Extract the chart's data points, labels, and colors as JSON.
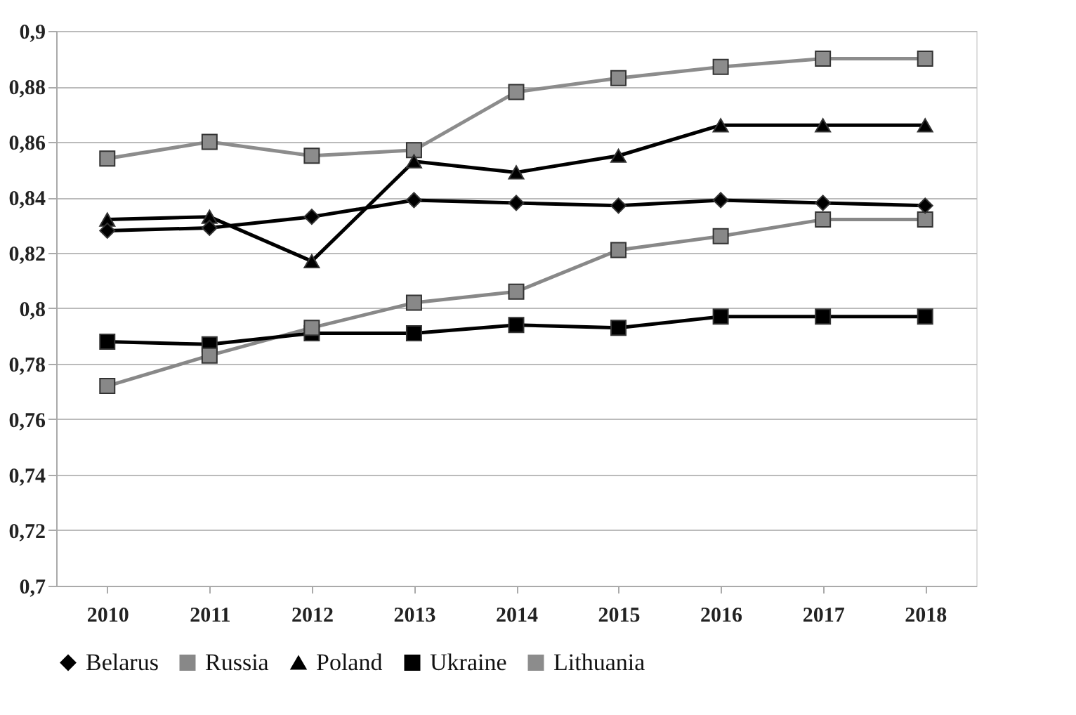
{
  "chart_data": {
    "type": "line",
    "categories": [
      "2010",
      "2011",
      "2012",
      "2013",
      "2014",
      "2015",
      "2016",
      "2017",
      "2018"
    ],
    "series": [
      {
        "name": "Belarus",
        "color": "#000000",
        "marker": "diamond",
        "values": [
          0.828,
          0.829,
          0.833,
          0.839,
          0.838,
          0.837,
          0.839,
          0.838,
          0.837
        ]
      },
      {
        "name": "Russia",
        "color": "#888888",
        "marker": "square",
        "values": [
          0.772,
          0.783,
          0.793,
          0.802,
          0.806,
          0.821,
          0.826,
          0.832,
          0.832
        ]
      },
      {
        "name": "Poland",
        "color": "#000000",
        "marker": "triangle",
        "values": [
          0.832,
          0.833,
          0.817,
          0.853,
          0.849,
          0.855,
          0.866,
          0.866,
          0.866
        ]
      },
      {
        "name": "Ukraine",
        "color": "#000000",
        "marker": "square",
        "values": [
          0.788,
          0.787,
          0.791,
          0.791,
          0.794,
          0.793,
          0.797,
          0.797,
          0.797
        ]
      },
      {
        "name": "Lithuania",
        "color": "#8c8c8c",
        "marker": "square",
        "values": [
          0.854,
          0.86,
          0.855,
          0.857,
          0.878,
          0.883,
          0.887,
          0.89,
          0.89
        ]
      }
    ],
    "ylim": [
      0.7,
      0.9
    ],
    "yticks": [
      {
        "value": 0.7,
        "label": "0,7"
      },
      {
        "value": 0.72,
        "label": "0,72"
      },
      {
        "value": 0.74,
        "label": "0,74"
      },
      {
        "value": 0.76,
        "label": "0,76"
      },
      {
        "value": 0.78,
        "label": "0,78"
      },
      {
        "value": 0.8,
        "label": "0,8"
      },
      {
        "value": 0.82,
        "label": "0,82"
      },
      {
        "value": 0.84,
        "label": "0,84"
      },
      {
        "value": 0.86,
        "label": "0,86"
      },
      {
        "value": 0.88,
        "label": "0,88"
      },
      {
        "value": 0.9,
        "label": "0,9"
      }
    ],
    "grid": "y",
    "legend": "bottom",
    "line_style": "solid"
  }
}
